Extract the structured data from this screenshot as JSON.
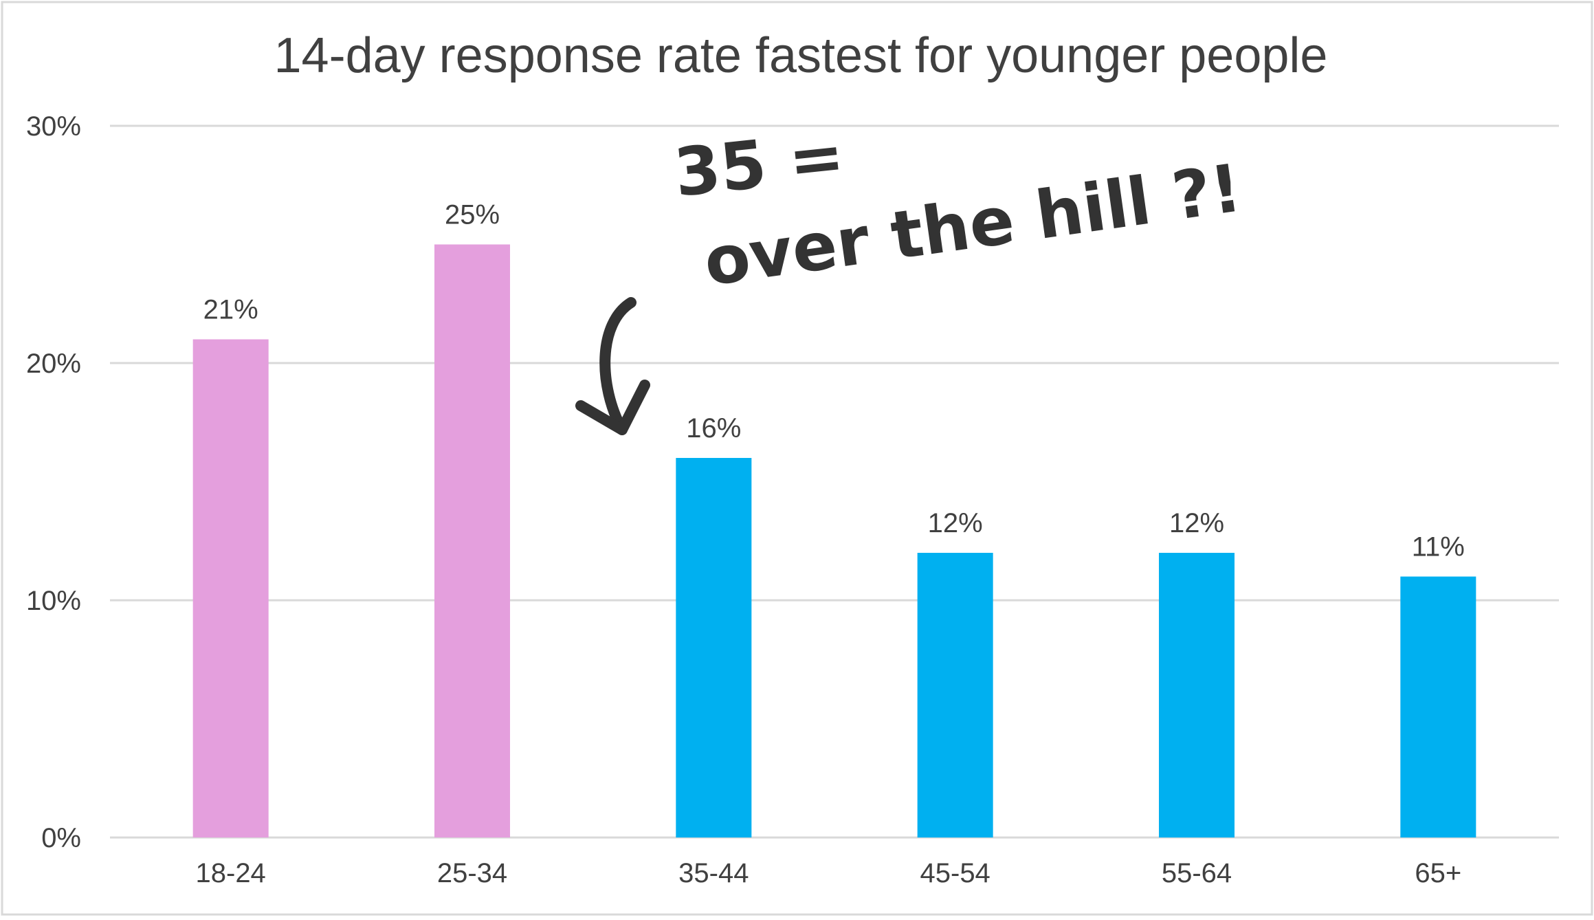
{
  "chart_data": {
    "type": "bar",
    "title": "14-day response rate fastest for younger people",
    "xlabel": "",
    "ylabel": "",
    "categories": [
      "18-24",
      "25-34",
      "35-44",
      "45-54",
      "55-64",
      "65+"
    ],
    "values": [
      21,
      25,
      16,
      12,
      12,
      11
    ],
    "data_labels": [
      "21%",
      "25%",
      "16%",
      "12%",
      "12%",
      "11%"
    ],
    "ylim": [
      0,
      30
    ],
    "y_ticks": [
      0,
      10,
      20,
      30
    ],
    "y_tick_labels": [
      "0%",
      "10%",
      "20%",
      "30%"
    ],
    "grid": true,
    "legend": "none",
    "colors": {
      "highlight": "#E49FDD",
      "default": "#00B0F0",
      "grid": "#D9D9D9",
      "text": "#404040",
      "border": "#D9D9D9"
    },
    "bar_colors": [
      "highlight",
      "highlight",
      "default",
      "default",
      "default",
      "default"
    ],
    "annotation": {
      "line1": "35 =",
      "line2": "over the hill ?!",
      "arrow_target": "35-44"
    }
  }
}
